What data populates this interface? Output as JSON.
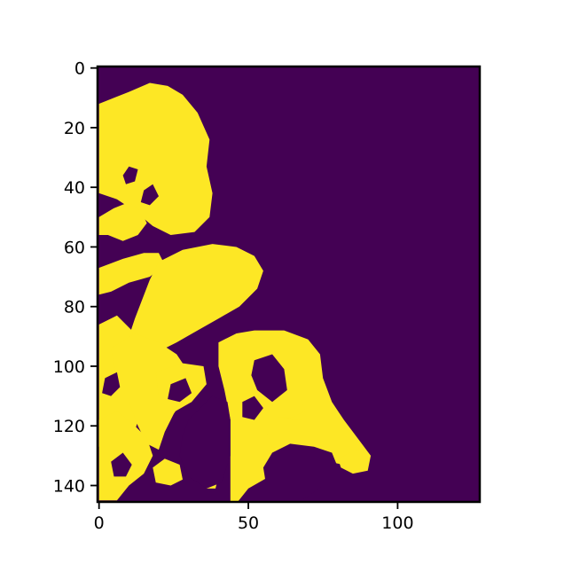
{
  "chart_data": {
    "type": "heatmap",
    "title": "",
    "xlabel": "",
    "ylabel": "",
    "grid": false,
    "legend": "none",
    "colormap": "viridis",
    "binary_values": [
      0,
      1
    ],
    "colors": {
      "value_0": "#440154",
      "value_1": "#fde725"
    },
    "image_width": 128,
    "image_height": 146,
    "xlim": [
      -0.5,
      127.5
    ],
    "ylim": [
      145.5,
      -0.5
    ],
    "xticks": [
      0,
      50,
      100
    ],
    "yticks": [
      0,
      20,
      40,
      60,
      80,
      100,
      120,
      140
    ],
    "xtick_labels": [
      "0",
      "50",
      "100"
    ],
    "ytick_labels": [
      "0",
      "20",
      "40",
      "60",
      "80",
      "100",
      "120",
      "140"
    ],
    "yellow_regions": [
      [
        [
          0,
          12
        ],
        [
          10,
          8
        ],
        [
          17,
          5
        ],
        [
          23,
          6
        ],
        [
          28,
          9
        ],
        [
          33,
          15
        ],
        [
          37,
          24
        ],
        [
          36,
          33
        ],
        [
          38,
          42
        ],
        [
          37,
          50
        ],
        [
          32,
          55
        ],
        [
          24,
          56
        ],
        [
          18,
          53
        ],
        [
          12,
          48
        ],
        [
          6,
          44
        ],
        [
          0,
          42
        ]
      ],
      [
        [
          0,
          50
        ],
        [
          5,
          47
        ],
        [
          10,
          45
        ],
        [
          14,
          48
        ],
        [
          16,
          52
        ],
        [
          13,
          56
        ],
        [
          8,
          58
        ],
        [
          3,
          56
        ],
        [
          0,
          56
        ]
      ],
      [
        [
          0,
          67
        ],
        [
          8,
          64
        ],
        [
          15,
          62
        ],
        [
          20,
          62
        ],
        [
          22,
          66
        ],
        [
          17,
          70
        ],
        [
          10,
          72
        ],
        [
          4,
          75
        ],
        [
          0,
          76
        ]
      ],
      [
        [
          17,
          71
        ],
        [
          20,
          65
        ],
        [
          28,
          61
        ],
        [
          38,
          59
        ],
        [
          46,
          60
        ],
        [
          52,
          63
        ],
        [
          55,
          68
        ],
        [
          53,
          74
        ],
        [
          47,
          80
        ],
        [
          40,
          84
        ],
        [
          33,
          88
        ],
        [
          26,
          92
        ],
        [
          20,
          95
        ],
        [
          14,
          96
        ],
        [
          10,
          90
        ],
        [
          12,
          84
        ]
      ],
      [
        [
          0,
          86
        ],
        [
          6,
          83
        ],
        [
          11,
          88
        ],
        [
          13,
          96
        ],
        [
          16,
          106
        ],
        [
          14,
          116
        ],
        [
          11,
          124
        ],
        [
          6,
          128
        ],
        [
          0,
          127
        ]
      ],
      [
        [
          4,
          94
        ],
        [
          12,
          89
        ],
        [
          20,
          92
        ],
        [
          26,
          96
        ],
        [
          30,
          102
        ],
        [
          29,
          110
        ],
        [
          25,
          116
        ],
        [
          22,
          122
        ],
        [
          20,
          128
        ],
        [
          16,
          126
        ],
        [
          13,
          120
        ],
        [
          10,
          112
        ],
        [
          6,
          104
        ]
      ],
      [
        [
          0,
          118
        ],
        [
          6,
          115
        ],
        [
          12,
          120
        ],
        [
          16,
          124
        ],
        [
          18,
          130
        ],
        [
          15,
          136
        ],
        [
          10,
          140
        ],
        [
          6,
          145
        ],
        [
          0,
          145
        ]
      ],
      [
        [
          19,
          102
        ],
        [
          28,
          99
        ],
        [
          35,
          100
        ],
        [
          36,
          106
        ],
        [
          31,
          112
        ],
        [
          24,
          116
        ],
        [
          20,
          110
        ]
      ],
      [
        [
          40,
          92
        ],
        [
          46,
          89
        ],
        [
          52,
          88
        ],
        [
          62,
          88
        ],
        [
          70,
          91
        ],
        [
          74,
          96
        ],
        [
          75,
          104
        ],
        [
          78,
          112
        ],
        [
          82,
          118
        ],
        [
          88,
          126
        ],
        [
          91,
          130
        ],
        [
          86,
          134
        ],
        [
          77,
          132
        ],
        [
          72,
          136
        ],
        [
          64,
          134
        ],
        [
          57,
          137
        ],
        [
          50,
          141
        ],
        [
          46,
          146
        ],
        [
          44,
          146
        ],
        [
          44,
          130
        ],
        [
          44,
          118
        ],
        [
          42,
          108
        ],
        [
          40,
          100
        ]
      ],
      [
        [
          58,
          108
        ],
        [
          61,
          104
        ],
        [
          64,
          106
        ],
        [
          67,
          110
        ],
        [
          69,
          115
        ],
        [
          65,
          117
        ],
        [
          60,
          117
        ],
        [
          58,
          113
        ]
      ],
      [
        [
          80,
          131
        ],
        [
          86,
          128
        ],
        [
          91,
          130
        ],
        [
          90,
          135
        ],
        [
          85,
          136
        ],
        [
          81,
          134
        ]
      ],
      [
        [
          18,
          134
        ],
        [
          22,
          131
        ],
        [
          27,
          133
        ],
        [
          28,
          138
        ],
        [
          24,
          140
        ],
        [
          19,
          139
        ]
      ],
      [
        [
          36,
          138
        ],
        [
          40,
          137
        ],
        [
          39,
          141
        ],
        [
          36,
          141
        ]
      ],
      [
        [
          60,
          117
        ],
        [
          68,
          118
        ],
        [
          73,
          123
        ],
        [
          71,
          127
        ],
        [
          64,
          129
        ],
        [
          58,
          127
        ],
        [
          56,
          122
        ]
      ]
    ],
    "purple_holes": [
      [
        [
          8,
          36
        ],
        [
          10,
          33
        ],
        [
          13,
          34
        ],
        [
          12,
          38
        ],
        [
          9,
          39
        ]
      ],
      [
        [
          15,
          41
        ],
        [
          18,
          39
        ],
        [
          20,
          43
        ],
        [
          17,
          46
        ],
        [
          14,
          45
        ]
      ],
      [
        [
          52,
          98
        ],
        [
          58,
          96
        ],
        [
          62,
          101
        ],
        [
          63,
          108
        ],
        [
          58,
          112
        ],
        [
          53,
          108
        ],
        [
          51,
          103
        ]
      ],
      [
        [
          24,
          106
        ],
        [
          29,
          104
        ],
        [
          31,
          109
        ],
        [
          27,
          112
        ],
        [
          23,
          111
        ]
      ],
      [
        [
          2,
          104
        ],
        [
          6,
          102
        ],
        [
          7,
          107
        ],
        [
          4,
          110
        ],
        [
          1,
          109
        ]
      ],
      [
        [
          30,
          118
        ],
        [
          38,
          110
        ],
        [
          43,
          112
        ],
        [
          44,
          118
        ],
        [
          44,
          130
        ],
        [
          41,
          139
        ],
        [
          36,
          141
        ],
        [
          30,
          137
        ],
        [
          27,
          130
        ],
        [
          28,
          123
        ]
      ],
      [
        [
          4,
          132
        ],
        [
          8,
          129
        ],
        [
          11,
          133
        ],
        [
          9,
          137
        ],
        [
          5,
          137
        ]
      ],
      [
        [
          58,
          129
        ],
        [
          64,
          126
        ],
        [
          72,
          127
        ],
        [
          78,
          129
        ],
        [
          80,
          134
        ],
        [
          75,
          140
        ],
        [
          68,
          145
        ],
        [
          60,
          145
        ],
        [
          56,
          140
        ],
        [
          55,
          134
        ]
      ],
      [
        [
          48,
          112
        ],
        [
          52,
          110
        ],
        [
          55,
          114
        ],
        [
          52,
          118
        ],
        [
          48,
          117
        ]
      ]
    ]
  }
}
